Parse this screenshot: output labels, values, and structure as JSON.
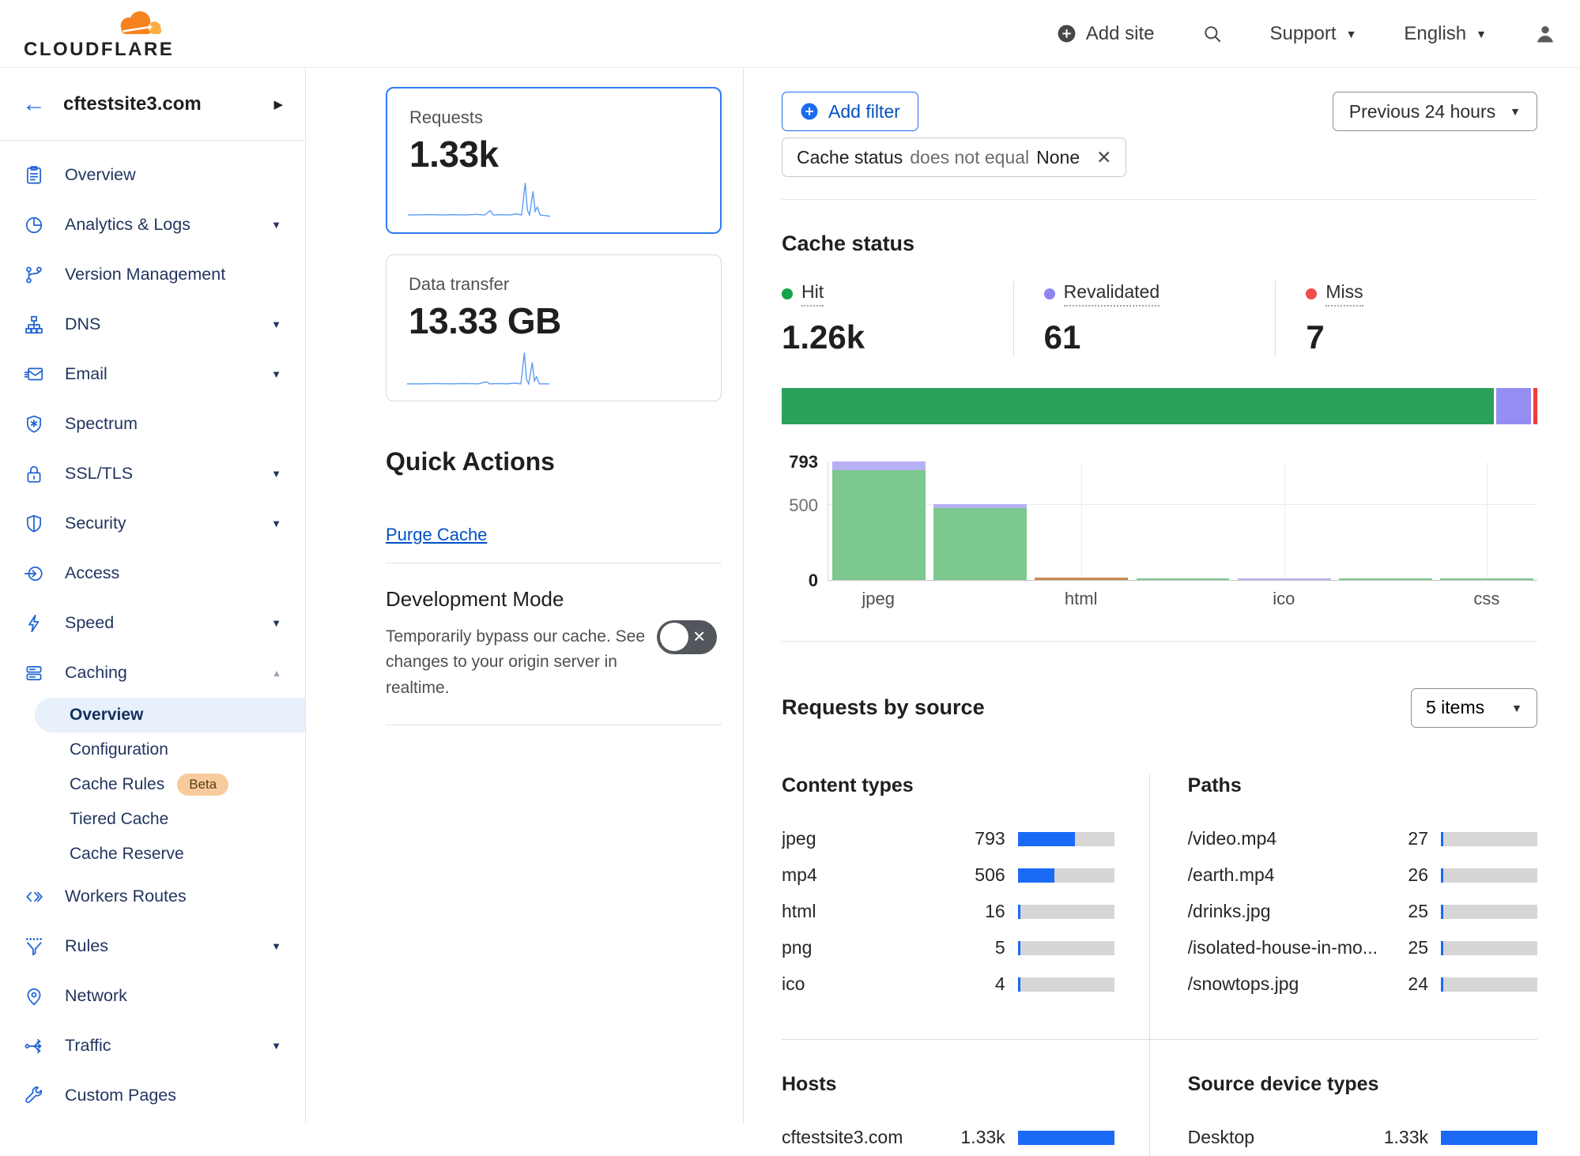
{
  "topbar": {
    "logo_text": "CLOUDFLARE",
    "add_site_label": "Add site",
    "support_label": "Support",
    "language_label": "English"
  },
  "sidebar": {
    "site_name": "cftestsite3.com",
    "items": [
      {
        "label": "Overview",
        "icon": "clipboard"
      },
      {
        "label": "Analytics & Logs",
        "icon": "pie-chart",
        "caret": "down"
      },
      {
        "label": "Version Management",
        "icon": "branch"
      },
      {
        "label": "DNS",
        "icon": "hierarchy",
        "caret": "down"
      },
      {
        "label": "Email",
        "icon": "envelope",
        "caret": "down"
      },
      {
        "label": "Spectrum",
        "icon": "shield-spectrum"
      },
      {
        "label": "SSL/TLS",
        "icon": "lock",
        "caret": "down"
      },
      {
        "label": "Security",
        "icon": "shield",
        "caret": "down"
      },
      {
        "label": "Access",
        "icon": "login-arrow"
      },
      {
        "label": "Speed",
        "icon": "lightning",
        "caret": "down"
      },
      {
        "label": "Caching",
        "icon": "server-stack",
        "caret": "up",
        "children": [
          {
            "label": "Overview",
            "active": true
          },
          {
            "label": "Configuration"
          },
          {
            "label": "Cache Rules",
            "badge": "Beta"
          },
          {
            "label": "Tiered Cache"
          },
          {
            "label": "Cache Reserve"
          }
        ]
      },
      {
        "label": "Workers Routes",
        "icon": "code-brackets"
      },
      {
        "label": "Rules",
        "icon": "funnel",
        "caret": "down"
      },
      {
        "label": "Network",
        "icon": "map-pin"
      },
      {
        "label": "Traffic",
        "icon": "share-nodes",
        "caret": "down"
      },
      {
        "label": "Custom Pages",
        "icon": "wrench"
      }
    ]
  },
  "middle": {
    "requests_card": {
      "label": "Requests",
      "value": "1.33k",
      "spark": "0,25.5 8,25.5 16,25.3 24,25.6 32,25.4 40,25.6 48,25.2 54,25.6 58,22.5 60,25.6 66,25.4 72,25.6 76,24.8 80,25.6 82.5,3 84,22 85.5,25.6 88,9 89.5,23 91,20 93,25.6 100,26.5"
    },
    "data_transfer_card": {
      "label": "Data transfer",
      "value": "13.33 GB",
      "spark": "0,26 10,26 20,25.8 30,26 40,25.8 50,26 56,24.5 58,26 64,25.8 70,26 76,25.5 80,26 82.5,4 84,23 85.5,26 88,11 89.5,24 91,21 93,26 100,26"
    },
    "quick_actions_title": "Quick Actions",
    "purge_cache_label": "Purge Cache",
    "dev_mode": {
      "title": "Development Mode",
      "description": "Temporarily bypass our cache. See changes to your origin server in realtime."
    }
  },
  "filters": {
    "add_filter_label": "Add filter",
    "chip": {
      "field": "Cache status",
      "operator": "does not equal",
      "value": "None"
    },
    "time_range_label": "Previous 24 hours"
  },
  "cache_status": {
    "title": "Cache status",
    "total": 1330,
    "stats": [
      {
        "label": "Hit",
        "display": "1.26k",
        "value": 1260,
        "dot_color": "#16a34a",
        "bar_color": "#2ba15c"
      },
      {
        "label": "Revalidated",
        "display": "61",
        "value": 61,
        "dot_color": "#8d86f0",
        "bar_color": "#958ef2"
      },
      {
        "label": "Miss",
        "display": "7",
        "value": 7,
        "dot_color": "#f14c4c",
        "bar_color": "#f23a3a"
      }
    ]
  },
  "cache_chart": {
    "type": "bar",
    "ymax": 793,
    "yticks": [
      "793",
      "500",
      "0"
    ],
    "colors": {
      "hit": "#7cc88e",
      "revalidated": "#b6b0f4",
      "other": "#c98a52"
    },
    "gridline_slots": [
      2,
      4,
      6
    ],
    "bars": [
      {
        "label": "jpeg",
        "segments": [
          [
            "hit",
            737
          ],
          [
            "revalidated",
            56
          ]
        ]
      },
      {
        "label": "",
        "segments": [
          [
            "hit",
            480
          ],
          [
            "revalidated",
            26
          ]
        ]
      },
      {
        "label": "html",
        "segments": [
          [
            "other",
            16
          ]
        ]
      },
      {
        "label": "",
        "segments": [
          [
            "hit",
            5
          ]
        ]
      },
      {
        "label": "ico",
        "segments": [
          [
            "revalidated",
            4
          ]
        ]
      },
      {
        "label": "",
        "segments": [
          [
            "hit",
            2
          ]
        ]
      },
      {
        "label": "css",
        "segments": [
          [
            "hit",
            1
          ]
        ]
      }
    ]
  },
  "requests_by_source": {
    "title": "Requests by source",
    "items_select_label": "5 items",
    "total": 1330,
    "groups": [
      {
        "title": "Content types",
        "rows": [
          [
            "jpeg",
            793,
            "793"
          ],
          [
            "mp4",
            506,
            "506"
          ],
          [
            "html",
            16,
            "16"
          ],
          [
            "png",
            5,
            "5"
          ],
          [
            "ico",
            4,
            "4"
          ]
        ]
      },
      {
        "title": "Paths",
        "rows": [
          [
            "/video.mp4",
            27,
            "27"
          ],
          [
            "/earth.mp4",
            26,
            "26"
          ],
          [
            "/drinks.jpg",
            25,
            "25"
          ],
          [
            "/isolated-house-in-mo...",
            25,
            "25"
          ],
          [
            "/snowtops.jpg",
            24,
            "24"
          ]
        ]
      },
      {
        "title": "Hosts",
        "rows": [
          [
            "cftestsite3.com",
            1330,
            "1.33k"
          ]
        ]
      },
      {
        "title": "Source device types",
        "rows": [
          [
            "Desktop",
            1330,
            "1.33k"
          ]
        ]
      }
    ]
  }
}
